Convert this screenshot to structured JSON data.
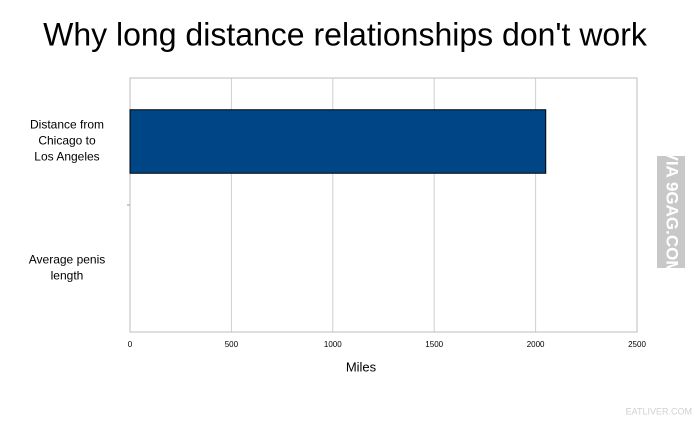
{
  "chart_data": {
    "type": "barh",
    "title": "Why long distance relationships don't work",
    "categories": [
      "Distance from Chicago to Los Angeles",
      "Average penis length"
    ],
    "values": [
      2050,
      0
    ],
    "color": "#004586",
    "xlim": [
      0,
      2500
    ],
    "xticks": [
      0,
      500,
      1000,
      1500,
      2000,
      2500
    ],
    "xlabel": "Miles",
    "grid": true
  },
  "watermarks": {
    "side": "VIA 9GAG.COM",
    "corner": "EATLIVER.COM"
  }
}
